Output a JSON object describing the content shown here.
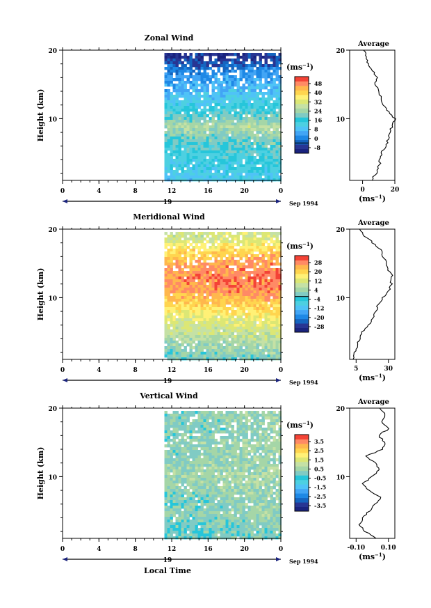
{
  "colors": {
    "scale": [
      "#1a237e",
      "#283593",
      "#1565c0",
      "#1e88e5",
      "#42a5f5",
      "#4fc3f7",
      "#4dd0e1",
      "#26c6da",
      "#80cbc4",
      "#a5d6a7",
      "#c5e1a5",
      "#dce775",
      "#fff176",
      "#ffd54f",
      "#ffb74d",
      "#ff8a65",
      "#f44336"
    ]
  },
  "chart_data": [
    {
      "type": "heatmap",
      "title": "Zonal Wind",
      "ylabel": "Height (km)",
      "xlim": [
        0,
        24
      ],
      "ylim": [
        1,
        20
      ],
      "x_ticks": [
        "0",
        "4",
        "8",
        "12",
        "16",
        "20",
        "0"
      ],
      "y_ticks": [
        "10",
        "20"
      ],
      "date_label": "19",
      "date_right": "Sep 1994",
      "data_start_hour": 11.2,
      "colorbar": {
        "unit_base": "(ms",
        "unit_sup": "−1",
        "unit_end": ")",
        "labels": [
          "48",
          "40",
          "32",
          "24",
          "16",
          "8",
          "0",
          "-8"
        ],
        "range": [
          -8,
          52
        ],
        "zero_line": 0
      },
      "field": {
        "height_km": [
          1,
          3,
          5,
          7,
          9,
          11,
          13,
          15,
          17,
          19
        ],
        "value_ms": [
          12,
          14,
          16,
          20,
          26,
          18,
          12,
          8,
          4,
          -4
        ]
      },
      "average": {
        "title": "Average",
        "x_ticks": [
          "0",
          "20"
        ],
        "xlim": [
          -8,
          20
        ],
        "xlabel": "(ms",
        "height_km": [
          1,
          2,
          3,
          4,
          5,
          6,
          7,
          8,
          9,
          10,
          11,
          12,
          13,
          14,
          15,
          16,
          17,
          18,
          19,
          20
        ],
        "value_ms": [
          6,
          8,
          10,
          11,
          12,
          14,
          16,
          17,
          18,
          20,
          16,
          13,
          12,
          10,
          8,
          9,
          6,
          4,
          2,
          1
        ]
      }
    },
    {
      "type": "heatmap",
      "title": "Meridional Wind",
      "ylabel": "Height (km)",
      "xlim": [
        0,
        24
      ],
      "ylim": [
        1,
        20
      ],
      "x_ticks": [
        "0",
        "4",
        "8",
        "12",
        "16",
        "20",
        "0"
      ],
      "y_ticks": [
        "10",
        "20"
      ],
      "date_label": "19",
      "date_right": "Sep 1994",
      "data_start_hour": 11.2,
      "colorbar": {
        "unit_base": "(ms",
        "unit_sup": "−1",
        "unit_end": ")",
        "labels": [
          "28",
          "20",
          "12",
          "4",
          "-4",
          "-12",
          "-20",
          "-28"
        ],
        "range": [
          -28,
          32
        ],
        "zero_line": 0
      },
      "field": {
        "height_km": [
          1,
          3,
          5,
          7,
          9,
          11,
          13,
          15,
          17,
          19
        ],
        "value_ms": [
          0,
          4,
          8,
          12,
          18,
          24,
          26,
          24,
          18,
          10
        ]
      },
      "average": {
        "title": "Average",
        "x_ticks": [
          "5",
          "30"
        ],
        "xlim": [
          0,
          35
        ],
        "xlabel": "(ms",
        "height_km": [
          1,
          2,
          3,
          4,
          5,
          6,
          7,
          8,
          9,
          10,
          11,
          12,
          13,
          14,
          15,
          16,
          17,
          18,
          19,
          20
        ],
        "value_ms": [
          2,
          4,
          6,
          8,
          10,
          14,
          18,
          20,
          22,
          26,
          30,
          32,
          33,
          30,
          28,
          26,
          24,
          18,
          12,
          8
        ]
      }
    },
    {
      "type": "heatmap",
      "title": "Vertical Wind",
      "ylabel": "Height (km)",
      "xlabel": "Local Time",
      "xlim": [
        0,
        24
      ],
      "ylim": [
        1,
        20
      ],
      "x_ticks": [
        "0",
        "4",
        "8",
        "12",
        "16",
        "20",
        "0"
      ],
      "y_ticks": [
        "10",
        "20"
      ],
      "date_label": "19",
      "date_right": "Sep 1994",
      "data_start_hour": 11.2,
      "colorbar": {
        "unit_base": "(ms",
        "unit_sup": "−1",
        "unit_end": ")",
        "labels": [
          "3.5",
          "2.5",
          "1.5",
          "0.5",
          "-0.5",
          "-1.5",
          "-2.5",
          "-3.5"
        ],
        "range": [
          -3.5,
          3.5
        ],
        "zero_line": null
      },
      "field": {
        "height_km": [
          1,
          3,
          5,
          7,
          9,
          11,
          13,
          15,
          17,
          19
        ],
        "value_ms": [
          -0.2,
          -0.1,
          0.1,
          0.0,
          0.2,
          0.3,
          0.1,
          0.2,
          0.0,
          0.1
        ]
      },
      "average": {
        "title": "Average",
        "x_ticks": [
          "-0.10",
          "0.10"
        ],
        "xlim": [
          -0.14,
          0.14
        ],
        "xlabel": "(ms",
        "height_km": [
          1,
          2,
          3,
          4,
          5,
          6,
          7,
          8,
          9,
          10,
          11,
          12,
          13,
          14,
          15,
          16,
          17,
          18,
          19,
          20
        ],
        "value_ms": [
          0.02,
          -0.04,
          -0.08,
          -0.06,
          -0.02,
          0.02,
          0.06,
          -0.02,
          -0.06,
          0.0,
          0.04,
          0.02,
          -0.04,
          0.06,
          0.08,
          0.04,
          0.1,
          0.06,
          0.08,
          0.04
        ]
      }
    }
  ]
}
